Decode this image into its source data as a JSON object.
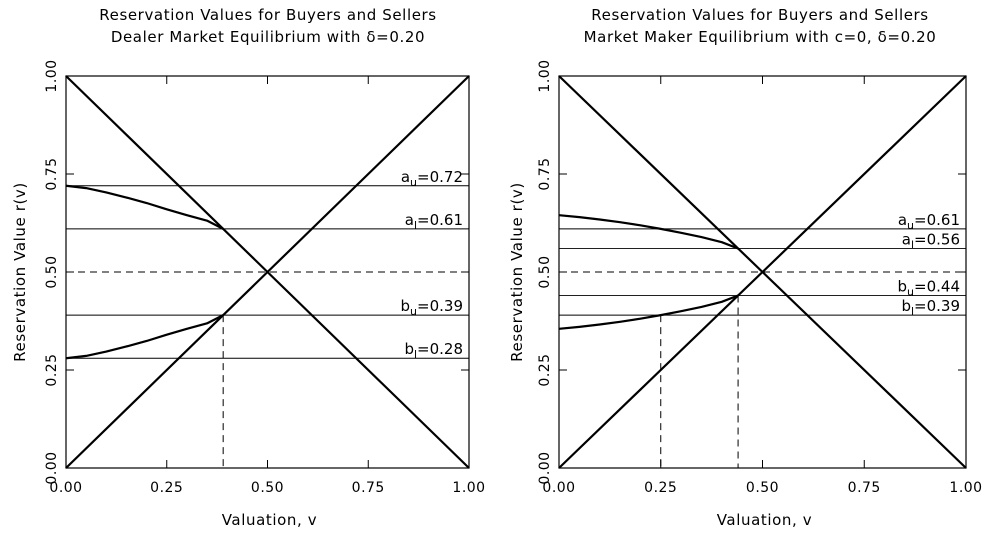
{
  "chart_data": [
    {
      "type": "line",
      "title_line1": "Reservation Values for Buyers and Sellers",
      "title_line2": "Dealer Market Equilibrium with δ=0.20",
      "xlabel": "Valuation, v",
      "ylabel": "Reservation Value r(v)",
      "xlim": [
        0,
        1
      ],
      "ylim": [
        0,
        1
      ],
      "xticks": [
        "0.00",
        "0.25",
        "0.50",
        "0.75",
        "1.00"
      ],
      "yticks": [
        "0.00",
        "0.25",
        "0.50",
        "0.75",
        "1.00"
      ],
      "xtick_values": [
        0,
        0.25,
        0.5,
        0.75,
        1
      ],
      "ytick_values": [
        0,
        0.25,
        0.5,
        0.75,
        1
      ],
      "series": [
        {
          "values": [
            [
              0,
              0
            ],
            [
              1,
              1
            ]
          ]
        },
        {
          "values": [
            [
              0,
              1
            ],
            [
              1,
              0
            ]
          ]
        },
        {
          "values": [
            [
              0,
              0.72
            ],
            [
              0.05,
              0.714
            ],
            [
              0.1,
              0.703
            ],
            [
              0.15,
              0.69
            ],
            [
              0.2,
              0.676
            ],
            [
              0.25,
              0.66
            ],
            [
              0.3,
              0.645
            ],
            [
              0.35,
              0.631
            ],
            [
              0.39,
              0.61
            ]
          ]
        },
        {
          "values": [
            [
              0,
              0.28
            ],
            [
              0.05,
              0.286
            ],
            [
              0.1,
              0.297
            ],
            [
              0.15,
              0.31
            ],
            [
              0.2,
              0.324
            ],
            [
              0.25,
              0.34
            ],
            [
              0.3,
              0.355
            ],
            [
              0.35,
              0.369
            ],
            [
              0.39,
              0.39
            ]
          ]
        }
      ],
      "hlines": [
        {
          "y": 0.72,
          "sub": "u",
          "value": "0.72",
          "prefix": "a"
        },
        {
          "y": 0.61,
          "sub": "l",
          "value": "0.61",
          "prefix": "a"
        },
        {
          "y": 0.39,
          "sub": "u",
          "value": "0.39",
          "prefix": "b"
        },
        {
          "y": 0.28,
          "sub": "l",
          "value": "0.28",
          "prefix": "b"
        }
      ],
      "dashed_h": [
        0.5
      ],
      "dashed_v": [
        {
          "x": 0.39,
          "y_top": 0.39
        }
      ]
    },
    {
      "type": "line",
      "title_line1": "Reservation Values for Buyers and Sellers",
      "title_line2": "Market Maker Equilibrium with c=0, δ=0.20",
      "xlabel": "Valuation, v",
      "ylabel": "Reservation Value r(v)",
      "xlim": [
        0,
        1
      ],
      "ylim": [
        0,
        1
      ],
      "xticks": [
        "0.00",
        "0.25",
        "0.50",
        "0.75",
        "1.00"
      ],
      "yticks": [
        "0.00",
        "0.25",
        "0.50",
        "0.75",
        "1.00"
      ],
      "xtick_values": [
        0,
        0.25,
        0.5,
        0.75,
        1
      ],
      "ytick_values": [
        0,
        0.25,
        0.5,
        0.75,
        1
      ],
      "series": [
        {
          "values": [
            [
              0,
              0
            ],
            [
              1,
              1
            ]
          ]
        },
        {
          "values": [
            [
              0,
              1
            ],
            [
              1,
              0
            ]
          ]
        },
        {
          "values": [
            [
              0,
              0.645
            ],
            [
              0.05,
              0.64
            ],
            [
              0.1,
              0.634
            ],
            [
              0.15,
              0.627
            ],
            [
              0.2,
              0.619
            ],
            [
              0.25,
              0.61
            ],
            [
              0.3,
              0.6
            ],
            [
              0.35,
              0.589
            ],
            [
              0.4,
              0.576
            ],
            [
              0.44,
              0.56
            ]
          ]
        },
        {
          "values": [
            [
              0,
              0.355
            ],
            [
              0.05,
              0.36
            ],
            [
              0.1,
              0.366
            ],
            [
              0.15,
              0.373
            ],
            [
              0.2,
              0.381
            ],
            [
              0.25,
              0.39
            ],
            [
              0.3,
              0.4
            ],
            [
              0.35,
              0.411
            ],
            [
              0.4,
              0.424
            ],
            [
              0.44,
              0.44
            ]
          ]
        }
      ],
      "hlines": [
        {
          "y": 0.61,
          "sub": "u",
          "value": "0.61",
          "prefix": "a"
        },
        {
          "y": 0.56,
          "sub": "l",
          "value": "0.56",
          "prefix": "a"
        },
        {
          "y": 0.44,
          "sub": "u",
          "value": "0.44",
          "prefix": "b"
        },
        {
          "y": 0.39,
          "sub": "l",
          "value": "0.39",
          "prefix": "b"
        }
      ],
      "dashed_h": [
        0.5
      ],
      "dashed_v": [
        {
          "x": 0.25,
          "y_top": 0.39
        },
        {
          "x": 0.44,
          "y_top": 0.44
        }
      ]
    }
  ]
}
